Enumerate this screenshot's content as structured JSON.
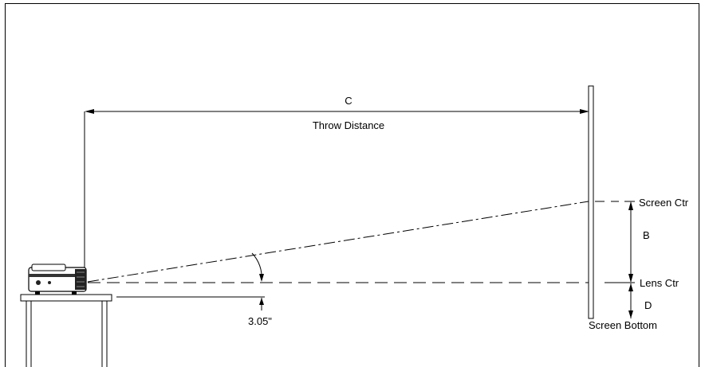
{
  "labels": {
    "dimension_c": "C",
    "throw_distance": "Throw Distance",
    "screen_center": "Screen Ctr",
    "dimension_b": "B",
    "lens_center": "Lens Ctr",
    "dimension_d": "D",
    "screen_bottom": "Screen Bottom",
    "lens_offset": "3.05\""
  }
}
